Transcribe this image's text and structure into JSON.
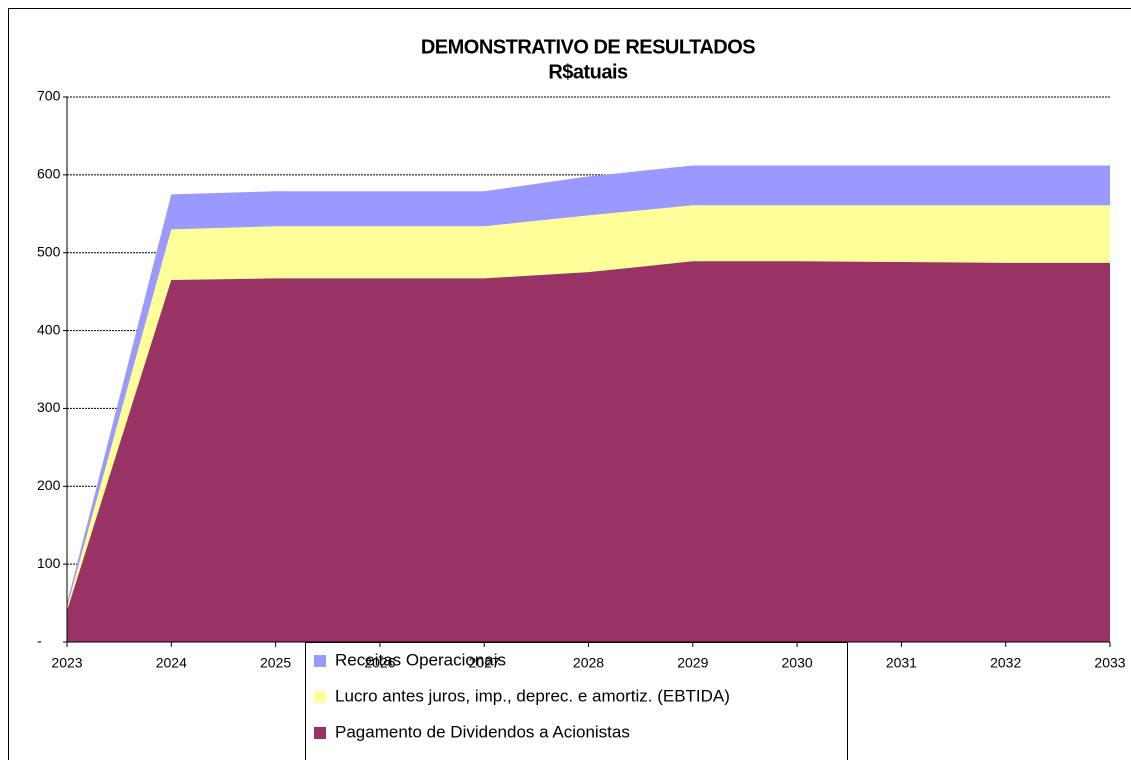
{
  "chart_data": {
    "type": "area",
    "title": "DEMONSTRATIVO DE RESULTADOS",
    "subtitle": "R$atuais",
    "categories": [
      "2023",
      "2024",
      "2025",
      "2026",
      "2027",
      "2028",
      "2029",
      "2030",
      "2031",
      "2032",
      "2033"
    ],
    "series": [
      {
        "name": "Receitas Operacionais",
        "color": "#9999ff",
        "values": [
          50,
          575,
          579,
          579,
          579,
          598,
          612,
          612,
          612,
          612,
          612
        ]
      },
      {
        "name": "Lucro antes juros, imp., deprec. e amortiz. (EBTIDA)",
        "color": "#ffff99",
        "values": [
          45,
          530,
          534,
          534,
          534,
          548,
          561,
          561,
          561,
          561,
          561
        ]
      },
      {
        "name": "Pagamento de Dividendos a Acionistas",
        "color": "#993366",
        "values": [
          40,
          465,
          467,
          467,
          467,
          475,
          489,
          489,
          488,
          487,
          487
        ]
      }
    ],
    "ylim": [
      0,
      700
    ],
    "yticks": [
      {
        "value": 0,
        "label": "-"
      },
      100,
      200,
      300,
      400,
      500,
      600,
      700
    ],
    "grid": true
  }
}
